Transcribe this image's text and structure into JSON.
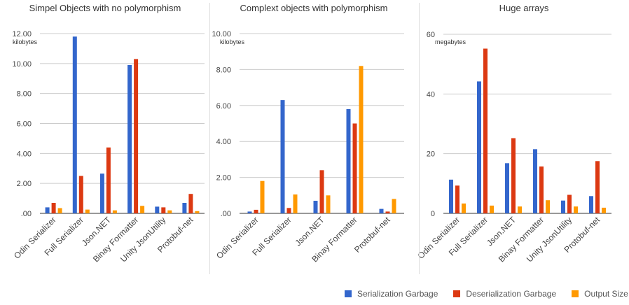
{
  "legend": [
    {
      "name": "Serialization Garbage",
      "color": "#3366cc"
    },
    {
      "name": "Deserialization Garbage",
      "color": "#dc3912"
    },
    {
      "name": "Output Size",
      "color": "#ff9900"
    }
  ],
  "chart_data": [
    {
      "type": "bar",
      "title": "Simpel Objects with no polymorphism",
      "unit_label": "kilobytes",
      "ylim": [
        0,
        12
      ],
      "yticks": [
        0,
        2,
        4,
        6,
        8,
        10,
        12
      ],
      "ytick_labels": [
        ".00",
        "2.00",
        "4.00",
        "6.00",
        "8.00",
        "10.00",
        "12.00"
      ],
      "grid": true,
      "categories": [
        "Odin Serializer",
        "Full Serializer",
        "Json.NET",
        "Binay Formatter",
        "Unity JsonUtility",
        "Protobuf-net"
      ],
      "series": [
        {
          "name": "Serialization Garbage",
          "values": [
            0.4,
            11.8,
            2.65,
            9.9,
            0.45,
            0.7
          ]
        },
        {
          "name": "Deserialization Garbage",
          "values": [
            0.7,
            2.5,
            4.4,
            10.3,
            0.4,
            1.3
          ]
        },
        {
          "name": "Output Size",
          "values": [
            0.35,
            0.25,
            0.2,
            0.5,
            0.2,
            0.15
          ]
        }
      ]
    },
    {
      "type": "bar",
      "title": "Complext objects with polymorphism",
      "unit_label": "kilobytes",
      "ylim": [
        0,
        10
      ],
      "yticks": [
        0,
        2,
        4,
        6,
        8,
        10
      ],
      "ytick_labels": [
        ".00",
        "2.00",
        "4.00",
        "6.00",
        "8.00",
        "10.00"
      ],
      "grid": true,
      "categories": [
        "Odin Serializer",
        "Full Serializer",
        "Json.NET",
        "Binay Formatter",
        "Protobuf-net"
      ],
      "series": [
        {
          "name": "Serialization Garbage",
          "values": [
            0.1,
            6.3,
            0.7,
            5.8,
            0.25
          ]
        },
        {
          "name": "Deserialization Garbage",
          "values": [
            0.2,
            0.3,
            2.4,
            5.0,
            0.1
          ]
        },
        {
          "name": "Output Size",
          "values": [
            1.8,
            1.05,
            1.0,
            8.2,
            0.8
          ]
        }
      ]
    },
    {
      "type": "bar",
      "title": "Huge arrays",
      "unit_label": "megabytes",
      "ylim": [
        0,
        60
      ],
      "yticks": [
        0,
        20,
        40,
        60
      ],
      "ytick_labels": [
        "0",
        "20",
        "40",
        "60"
      ],
      "grid": true,
      "categories": [
        "Odin Serializer",
        "Full Serializer",
        "Json.NET",
        "Binay Formatter",
        "Unity JsonUtility",
        "Protobuf-net"
      ],
      "series": [
        {
          "name": "Serialization Garbage",
          "values": [
            11.3,
            44.2,
            16.8,
            21.5,
            4.3,
            5.8
          ]
        },
        {
          "name": "Deserialization Garbage",
          "values": [
            9.3,
            55.2,
            25.2,
            15.7,
            6.2,
            17.5
          ]
        },
        {
          "name": "Output Size",
          "values": [
            3.3,
            2.6,
            2.3,
            4.4,
            2.3,
            1.9
          ]
        }
      ]
    }
  ]
}
